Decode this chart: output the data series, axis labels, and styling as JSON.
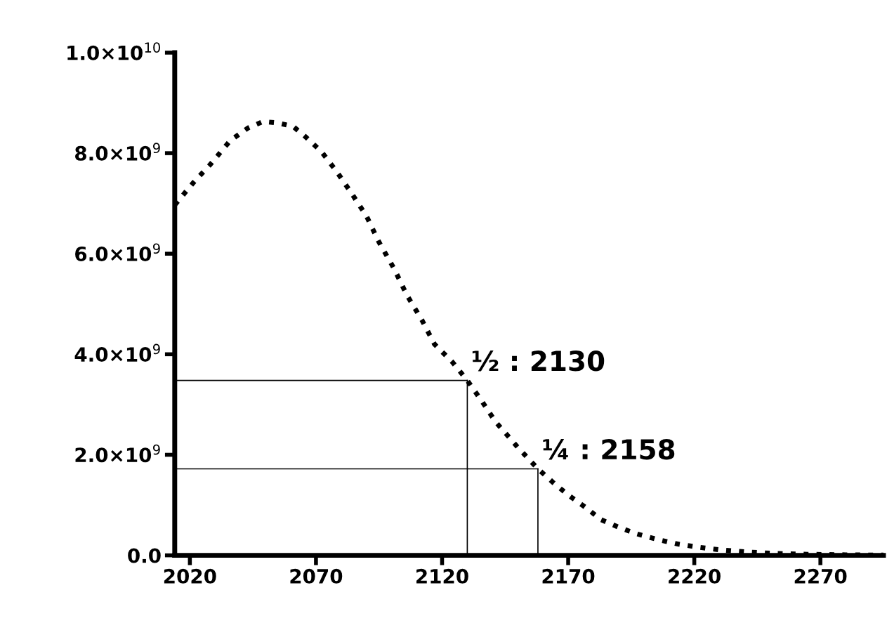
{
  "chart_data": {
    "type": "line",
    "color": "#000000",
    "line_style": "dotted",
    "grid": false,
    "legend": false,
    "x": [
      2014,
      2022,
      2028,
      2036,
      2043,
      2049,
      2055,
      2061,
      2066,
      2072,
      2078,
      2084,
      2090,
      2095,
      2101,
      2106,
      2112,
      2117,
      2124,
      2130,
      2136,
      2141,
      2150,
      2158,
      2164,
      2170,
      2177,
      2183,
      2190,
      2197,
      2205,
      2214,
      2222,
      2230,
      2240,
      2251,
      2265,
      2280,
      2295
    ],
    "values": [
      6970000000.0,
      7450000000.0,
      7770000000.0,
      8250000000.0,
      8500000000.0,
      8630000000.0,
      8600000000.0,
      8530000000.0,
      8320000000.0,
      8040000000.0,
      7650000000.0,
      7210000000.0,
      6750000000.0,
      6230000000.0,
      5700000000.0,
      5180000000.0,
      4680000000.0,
      4200000000.0,
      3850000000.0,
      3480000000.0,
      3050000000.0,
      2670000000.0,
      2150000000.0,
      1720000000.0,
      1450000000.0,
      1200000000.0,
      950000000.0,
      710000000.0,
      560000000.0,
      430000000.0,
      320000000.0,
      220000000.0,
      160000000.0,
      110000000.0,
      70000000.0,
      40000000.0,
      20000000.0,
      10000000.0,
      5000000.0
    ],
    "xlim": [
      2014,
      2295
    ],
    "xticks": [
      2020,
      2070,
      2120,
      2170,
      2220,
      2270
    ],
    "ylim": [
      0,
      10000000000.0
    ],
    "yticks": [
      {
        "value": 0,
        "label": "0.0"
      },
      {
        "value": 2000000000.0,
        "label": "2.0×10$^{9}$"
      },
      {
        "value": 4000000000.0,
        "label": "4.0×10$^{9}$"
      },
      {
        "value": 6000000000.0,
        "label": "6.0×10$^{9}$"
      },
      {
        "value": 8000000000.0,
        "label": "8.0×10$^{9}$"
      },
      {
        "value": 10000000000.0,
        "label": "1.0×10$^{10}$"
      }
    ],
    "annotations": [
      {
        "text": "½ : 2130",
        "x": 2130,
        "y": 3480000000.0
      },
      {
        "text": "¼ : 2158",
        "x": 2158,
        "y": 1720000000.0
      }
    ]
  }
}
